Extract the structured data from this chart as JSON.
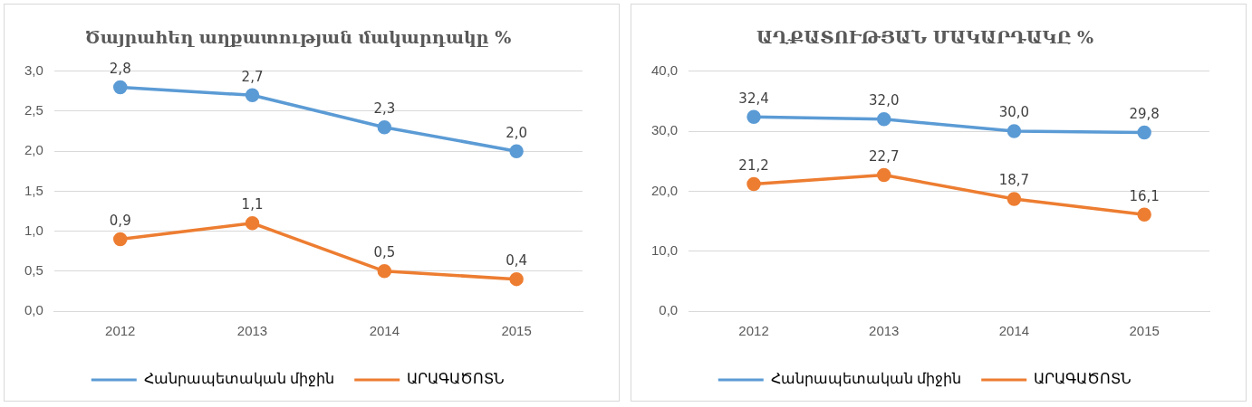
{
  "chart_data": [
    {
      "type": "line",
      "title": "Ծայրահեղ աղքատության մակարդակը %",
      "categories": [
        "2012",
        "2013",
        "2014",
        "2015"
      ],
      "series": [
        {
          "name": "Հանրապետական միջին",
          "color": "#5b9bd5",
          "values": [
            2.8,
            2.7,
            2.3,
            2.0
          ],
          "value_labels": [
            "2,8",
            "2,7",
            "2,3",
            "2,0"
          ]
        },
        {
          "name": "ԱՐԱԳԱԾՈՏՆ",
          "color": "#ed7d31",
          "values": [
            0.9,
            1.1,
            0.5,
            0.4
          ],
          "value_labels": [
            "0,9",
            "1,1",
            "0,5",
            "0,4"
          ]
        }
      ],
      "ylim": [
        0,
        3
      ],
      "yticks": [
        {
          "value": 0,
          "label": "0,0"
        },
        {
          "value": 0.5,
          "label": "0,5"
        },
        {
          "value": 1,
          "label": "1,0"
        },
        {
          "value": 1.5,
          "label": "1,5"
        },
        {
          "value": 2,
          "label": "2,0"
        },
        {
          "value": 2.5,
          "label": "2,5"
        },
        {
          "value": 3,
          "label": "3,0"
        }
      ],
      "grid": "y",
      "legend": "bottom",
      "marker": "circle"
    },
    {
      "type": "line",
      "title": "ԱՂՔԱՏՈՒԹՅԱՆ ՄԱԿԱՐԴԱԿԸ %",
      "categories": [
        "2012",
        "2013",
        "2014",
        "2015"
      ],
      "series": [
        {
          "name": "Հանրապետական միջին",
          "color": "#5b9bd5",
          "values": [
            32.4,
            32.0,
            30.0,
            29.8
          ],
          "value_labels": [
            "32,4",
            "32,0",
            "30,0",
            "29,8"
          ]
        },
        {
          "name": "ԱՐԱԳԱԾՈՏՆ",
          "color": "#ed7d31",
          "values": [
            21.2,
            22.7,
            18.7,
            16.1
          ],
          "value_labels": [
            "21,2",
            "22,7",
            "18,7",
            "16,1"
          ]
        }
      ],
      "ylim": [
        0,
        40
      ],
      "yticks": [
        {
          "value": 0,
          "label": "0,0"
        },
        {
          "value": 10,
          "label": "10,0"
        },
        {
          "value": 20,
          "label": "20,0"
        },
        {
          "value": 30,
          "label": "30,0"
        },
        {
          "value": 40,
          "label": "40,0"
        }
      ],
      "grid": "y",
      "legend": "bottom",
      "marker": "circle"
    }
  ]
}
